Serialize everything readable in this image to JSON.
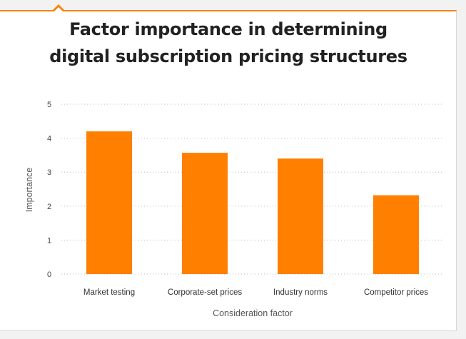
{
  "chart_data": {
    "type": "bar",
    "title_line1": "Factor importance in determining",
    "title_line2": "digital subscription pricing structures",
    "xlabel": "Consideration factor",
    "ylabel": "Importance",
    "categories": [
      "Market testing",
      "Corporate-set prices",
      "Industry norms",
      "Competitor prices"
    ],
    "values": [
      4.2,
      3.57,
      3.4,
      2.32
    ],
    "ylim": [
      0,
      5
    ],
    "yticks": [
      "0",
      "1",
      "2",
      "3",
      "4",
      "5"
    ],
    "grid": true,
    "bar_color": "#ff7f00",
    "accent_color": "#ff7f00"
  }
}
